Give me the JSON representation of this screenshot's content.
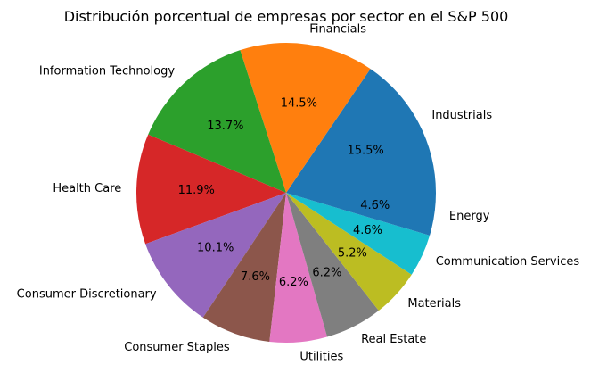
{
  "chart_data": {
    "type": "pie",
    "title": "Distribución porcentual de empresas por sector en el S&P 500",
    "start_angle_deg": 0,
    "direction": "counterclockwise",
    "slices": [
      {
        "label": "Industrials",
        "value": 15.5,
        "pct_label": "15.5%",
        "color": "#1f77b4"
      },
      {
        "label": "Financials",
        "value": 14.5,
        "pct_label": "14.5%",
        "color": "#ff7f0e"
      },
      {
        "label": "Information Technology",
        "value": 13.7,
        "pct_label": "13.7%",
        "color": "#2ca02c"
      },
      {
        "label": "Health Care",
        "value": 11.9,
        "pct_label": "11.9%",
        "color": "#d62728"
      },
      {
        "label": "Consumer Discretionary",
        "value": 10.1,
        "pct_label": "10.1%",
        "color": "#9467bd"
      },
      {
        "label": "Consumer Staples",
        "value": 7.6,
        "pct_label": "7.6%",
        "color": "#8c564b"
      },
      {
        "label": "Utilities",
        "value": 6.2,
        "pct_label": "6.2%",
        "color": "#e377c2"
      },
      {
        "label": "Real Estate",
        "value": 6.2,
        "pct_label": "6.2%",
        "color": "#7f7f7f"
      },
      {
        "label": "Materials",
        "value": 5.2,
        "pct_label": "5.2%",
        "color": "#bcbd22"
      },
      {
        "label": "Communication Services",
        "value": 4.6,
        "pct_label": "4.6%",
        "color": "#17becf"
      },
      {
        "label": "Energy",
        "value": 4.6,
        "pct_label": "4.6%",
        "color": "#1f77b4"
      }
    ]
  }
}
